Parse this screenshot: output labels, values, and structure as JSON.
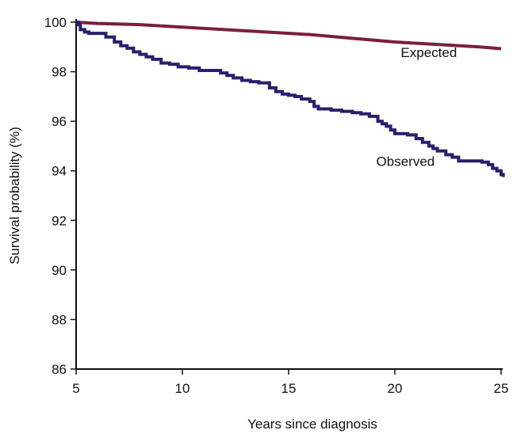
{
  "chart_data": {
    "type": "line",
    "title": "",
    "xlabel": "Years since diagnosis",
    "ylabel": "Survival probability (%)",
    "xlim": [
      5,
      25
    ],
    "ylim": [
      86,
      100
    ],
    "xticks": [
      5,
      10,
      15,
      20,
      25
    ],
    "yticks": [
      86,
      88,
      90,
      92,
      94,
      96,
      98,
      100
    ],
    "grid": false,
    "legend": "none",
    "series": [
      {
        "name": "Expected",
        "color": "#7a1f3d",
        "step": false,
        "x": [
          5,
          6,
          8,
          10,
          12,
          14,
          16,
          18,
          20,
          22,
          24,
          25
        ],
        "y": [
          100,
          99.95,
          99.9,
          99.8,
          99.7,
          99.6,
          99.5,
          99.35,
          99.2,
          99.1,
          99.0,
          98.93
        ]
      },
      {
        "name": "Observed",
        "color": "#27206b",
        "step": true,
        "x": [
          5,
          5.1,
          5.2,
          5.4,
          5.6,
          6.0,
          6.4,
          6.8,
          7.1,
          7.4,
          7.7,
          8.0,
          8.3,
          8.6,
          9.0,
          9.4,
          9.8,
          10.3,
          10.8,
          11.4,
          11.8,
          12.1,
          12.4,
          12.8,
          13.2,
          13.6,
          14.1,
          14.4,
          14.7,
          15.0,
          15.3,
          15.6,
          16.0,
          16.2,
          16.4,
          16.6,
          17.0,
          17.5,
          18.0,
          18.4,
          18.8,
          19.2,
          19.4,
          19.6,
          19.8,
          20.0,
          20.6,
          21.0,
          21.3,
          21.6,
          21.8,
          22.0,
          22.4,
          22.7,
          23.0,
          23.6,
          24.1,
          24.4,
          24.6,
          24.8,
          25.0,
          25.1
        ],
        "y": [
          100,
          99.9,
          99.7,
          99.6,
          99.55,
          99.55,
          99.4,
          99.2,
          99.05,
          98.95,
          98.8,
          98.7,
          98.6,
          98.5,
          98.35,
          98.3,
          98.2,
          98.15,
          98.05,
          98.05,
          97.95,
          97.85,
          97.75,
          97.65,
          97.6,
          97.55,
          97.35,
          97.2,
          97.1,
          97.05,
          97.0,
          96.9,
          96.8,
          96.6,
          96.5,
          96.5,
          96.45,
          96.4,
          96.35,
          96.3,
          96.2,
          96.0,
          95.9,
          95.8,
          95.65,
          95.5,
          95.45,
          95.3,
          95.15,
          95.0,
          94.9,
          94.8,
          94.65,
          94.55,
          94.4,
          94.4,
          94.35,
          94.25,
          94.1,
          94.0,
          93.85,
          93.75
        ]
      }
    ],
    "annotations": [
      {
        "text": "Expected",
        "series": "Expected",
        "x": 21.6,
        "y": 98.6
      },
      {
        "text": "Observed",
        "series": "Observed",
        "x": 20.5,
        "y": 94.2
      }
    ]
  }
}
